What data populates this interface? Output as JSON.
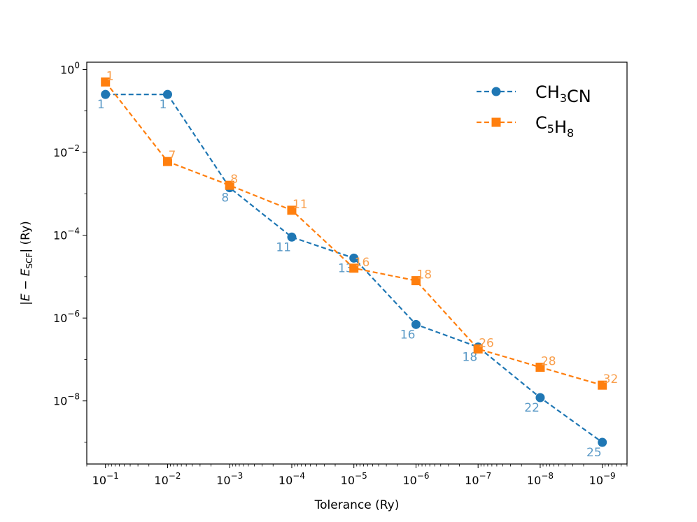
{
  "chart_data": {
    "type": "line",
    "xlabel": "Tolerance (Ry)",
    "xscale": "log",
    "yscale": "log",
    "x_inverted": true,
    "xlim": [
      0.2,
      4e-10
    ],
    "ylim": [
      3e-10,
      1.5
    ],
    "x_ticks": [
      0.1,
      0.01,
      0.001,
      0.0001,
      1e-05,
      1e-06,
      1e-07,
      1e-08,
      1e-09
    ],
    "x_tick_exponents": [
      "−1",
      "−2",
      "−3",
      "−4",
      "−5",
      "−6",
      "−7",
      "−8",
      "−9"
    ],
    "y_ticks": [
      1,
      0.01,
      0.0001,
      1e-06,
      1e-08
    ],
    "y_tick_exponents": [
      "0",
      "−2",
      "−4",
      "−6",
      "−8"
    ],
    "legend_position": "top-right",
    "grid": false,
    "series": [
      {
        "formula": [
          [
            "CH",
            false
          ],
          [
            "3",
            true
          ],
          [
            "CN",
            false
          ]
        ],
        "color": "#1f77b4",
        "label_color": "#5b9ac7",
        "marker": "circle",
        "line_style": "dashed",
        "x": [
          0.1,
          0.01,
          0.001,
          0.0001,
          1e-05,
          1e-06,
          1e-07,
          1e-08,
          1e-09
        ],
        "y": [
          0.25,
          0.25,
          0.0014,
          9e-05,
          2.8e-05,
          7e-07,
          2e-07,
          1.2e-08,
          1e-09
        ],
        "point_labels": [
          "1",
          "1",
          "8",
          "11",
          "13",
          "16",
          "18",
          "22",
          "25"
        ]
      },
      {
        "formula": [
          [
            "C",
            false
          ],
          [
            "5",
            true
          ],
          [
            "H",
            false
          ],
          [
            "8",
            true
          ]
        ],
        "color": "#ff7f0e",
        "label_color": "#f9a04e",
        "marker": "square",
        "line_style": "dashed",
        "x": [
          0.1,
          0.01,
          0.001,
          0.0001,
          1e-05,
          1e-06,
          1e-07,
          1e-08,
          1e-09
        ],
        "y": [
          0.5,
          0.006,
          0.0016,
          0.0004,
          1.6e-05,
          8e-06,
          1.8e-07,
          6.5e-08,
          2.4e-08
        ],
        "point_labels": [
          "1",
          "7",
          "8",
          "11",
          "16",
          "18",
          "26",
          "28",
          "32"
        ]
      }
    ]
  }
}
